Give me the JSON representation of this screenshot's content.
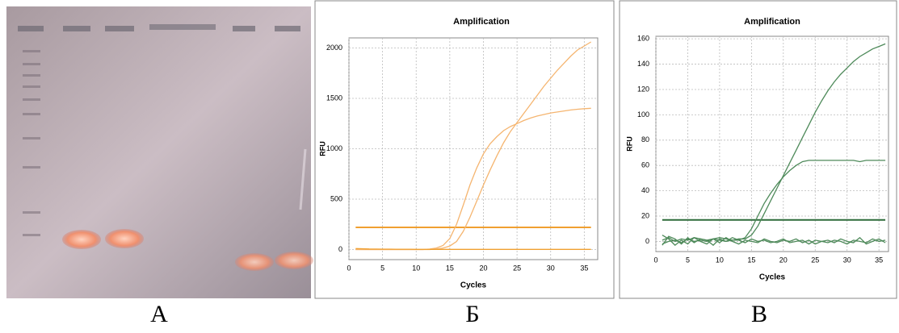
{
  "panel_labels": [
    "A",
    "Б",
    "В"
  ],
  "chart_data": [
    {
      "type": "line",
      "title": "Amplification",
      "x_label": "Cycles",
      "y_label": "RFU",
      "x": [
        1,
        2,
        3,
        4,
        5,
        6,
        7,
        8,
        9,
        10,
        11,
        12,
        13,
        14,
        15,
        16,
        17,
        18,
        19,
        20,
        21,
        22,
        23,
        24,
        25,
        26,
        27,
        28,
        29,
        30,
        31,
        32,
        33,
        34,
        35,
        36
      ],
      "xlim": [
        0,
        37
      ],
      "xticks": [
        0,
        5,
        10,
        15,
        20,
        25,
        30,
        35
      ],
      "ylim": [
        -100,
        2100
      ],
      "yticks": [
        0,
        500,
        1000,
        1500,
        2000
      ],
      "grid": true,
      "threshold": 220,
      "threshold_color": "#f0a030",
      "series": [
        {
          "color": "#f5b570",
          "values": [
            0,
            0,
            0,
            0,
            0,
            0,
            0,
            0,
            0,
            0,
            0,
            5,
            15,
            40,
            110,
            250,
            440,
            640,
            810,
            950,
            1050,
            1120,
            1180,
            1220,
            1250,
            1280,
            1305,
            1325,
            1340,
            1355,
            1365,
            1375,
            1385,
            1392,
            1398,
            1402
          ]
        },
        {
          "color": "#f5b570",
          "values": [
            0,
            0,
            0,
            0,
            0,
            0,
            0,
            0,
            0,
            0,
            0,
            0,
            5,
            15,
            35,
            80,
            180,
            320,
            480,
            640,
            790,
            930,
            1060,
            1170,
            1260,
            1350,
            1440,
            1530,
            1620,
            1700,
            1780,
            1850,
            1920,
            1980,
            2020,
            2060
          ]
        },
        {
          "color": "#f0a030",
          "values": [
            10,
            8,
            6,
            5,
            4,
            4,
            3,
            3,
            3,
            2,
            2,
            2,
            2,
            2,
            2,
            2,
            2,
            2,
            2,
            2,
            2,
            2,
            2,
            2,
            2,
            2,
            2,
            2,
            2,
            2,
            2,
            2,
            2,
            2,
            2,
            2
          ]
        }
      ]
    },
    {
      "type": "line",
      "title": "Amplification",
      "x_label": "Cycles",
      "y_label": "RFU",
      "x": [
        1,
        2,
        3,
        4,
        5,
        6,
        7,
        8,
        9,
        10,
        11,
        12,
        13,
        14,
        15,
        16,
        17,
        18,
        19,
        20,
        21,
        22,
        23,
        24,
        25,
        26,
        27,
        28,
        29,
        30,
        31,
        32,
        33,
        34,
        35,
        36
      ],
      "xlim": [
        0,
        36.5
      ],
      "xticks": [
        0,
        5,
        10,
        15,
        20,
        25,
        30,
        35
      ],
      "ylim": [
        -8,
        162
      ],
      "yticks": [
        0,
        20,
        40,
        60,
        80,
        100,
        120,
        140,
        160
      ],
      "grid": true,
      "threshold": 17,
      "threshold_color": "#2e6b3a",
      "series": [
        {
          "color": "#4e8a5a",
          "values": [
            1,
            3,
            0,
            2,
            1,
            3,
            2,
            1,
            2,
            3,
            2,
            1,
            2,
            2,
            5,
            12,
            22,
            32,
            42,
            52,
            62,
            72,
            82,
            92,
            102,
            111,
            119,
            126,
            132,
            137,
            142,
            146,
            149,
            152,
            154,
            156
          ]
        },
        {
          "color": "#4e8a5a",
          "values": [
            -2,
            0,
            1,
            -1,
            2,
            0,
            1,
            0,
            2,
            1,
            0,
            1,
            1,
            3,
            10,
            20,
            30,
            38,
            45,
            51,
            56,
            60,
            63,
            64,
            64,
            64,
            64,
            64,
            64,
            64,
            64,
            63,
            64,
            64,
            64,
            64
          ]
        },
        {
          "color": "#4e8a5a",
          "values": [
            5,
            2,
            -3,
            1,
            -2,
            3,
            0,
            -2,
            2,
            -1,
            3,
            0,
            -2,
            1,
            0,
            -1,
            2,
            0,
            -1,
            1,
            0,
            2,
            -1,
            1,
            -2,
            0,
            1,
            -1,
            2,
            0,
            -1,
            3,
            -2,
            0,
            2,
            -1
          ]
        },
        {
          "color": "#4e8a5a",
          "values": [
            -3,
            4,
            2,
            -2,
            3,
            -1,
            2,
            1,
            -3,
            2,
            0,
            3,
            1,
            -1,
            2,
            0,
            1,
            -1,
            0,
            2,
            -1,
            0,
            1,
            -2,
            1,
            0,
            -1,
            1,
            0,
            -2,
            1,
            0,
            -1,
            2,
            0,
            1
          ]
        }
      ]
    }
  ]
}
